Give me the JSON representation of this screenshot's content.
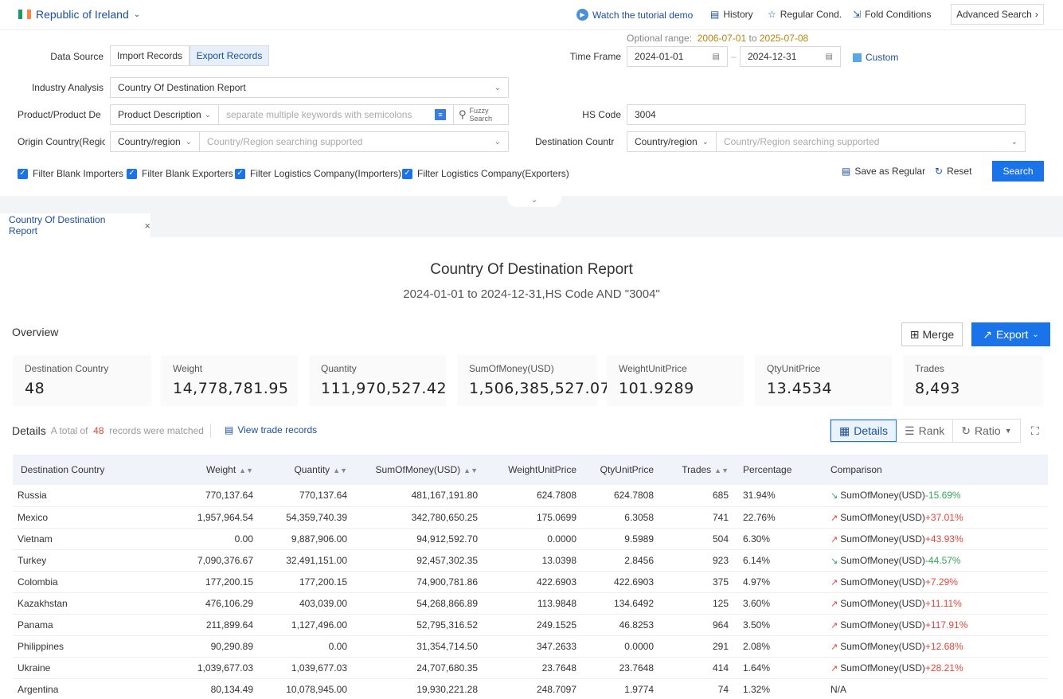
{
  "topbar": {
    "country": "Republic of Ireland",
    "tutorial": "Watch the tutorial demo",
    "history": "History",
    "regular_cond": "Regular Cond.",
    "fold_conditions": "Fold Conditions",
    "advanced_search": "Advanced Search"
  },
  "form": {
    "optional_range_label": "Optional range",
    "optional_range_start": "2006-07-01",
    "optional_range_to": "to",
    "optional_range_end": "2025-07-08",
    "data_source_label": "Data Source",
    "import_records": "Import Records",
    "export_records": "Export Records",
    "time_frame_label": "Time Frame",
    "date_from": "2024-01-01",
    "date_to": "2024-12-31",
    "custom": "Custom",
    "industry_label": "Industry Analysis",
    "industry_value": "Country Of Destination Report",
    "product_label": "Product/Product De",
    "product_type": "Product Description",
    "product_placeholder": "separate multiple keywords with semicolons",
    "fuzzy_search": "Fuzzy Search",
    "hs_code_label": "HS Code",
    "hs_code_value": "3004",
    "origin_label": "Origin Country(Regio",
    "origin_type": "Country/region",
    "origin_placeholder": "Country/Region searching supported",
    "dest_label": "Destination Countr",
    "dest_type": "Country/region",
    "dest_placeholder": "Country/Region searching supported",
    "filters": [
      "Filter Blank Importers",
      "Filter Blank Exporters",
      "Filter Logistics Company(Importers)",
      "Filter Logistics Company(Exporters)"
    ],
    "save_regular": "Save as Regular",
    "reset": "Reset",
    "search": "Search"
  },
  "report_tab": "Country Of Destination Report",
  "report": {
    "title": "Country Of Destination Report",
    "subtitle": "2024-01-01 to 2024-12-31,HS Code AND \"3004\""
  },
  "overview": {
    "title": "Overview",
    "merge": "Merge",
    "export": "Export",
    "cards": [
      {
        "label": "Destination Country",
        "value": "48"
      },
      {
        "label": "Weight",
        "value": "14,778,781.95"
      },
      {
        "label": "Quantity",
        "value": "111,970,527.42"
      },
      {
        "label": "SumOfMoney(USD)",
        "value": "1,506,385,527.07"
      },
      {
        "label": "WeightUnitPrice",
        "value": "101.9289"
      },
      {
        "label": "QtyUnitPrice",
        "value": "13.4534"
      },
      {
        "label": "Trades",
        "value": "8,493"
      }
    ]
  },
  "details": {
    "title": "Details",
    "total_prefix": "A total of",
    "total_count": "48",
    "total_suffix": "records were matched",
    "view_trade": "View trade records",
    "toggle": [
      "Details",
      "Rank",
      "Ratio"
    ]
  },
  "table": {
    "headers": [
      "Destination Country",
      "Weight",
      "Quantity",
      "SumOfMoney(USD)",
      "WeightUnitPrice",
      "QtyUnitPrice",
      "Trades",
      "Percentage",
      "Comparison"
    ],
    "rows": [
      {
        "country": "Russia",
        "weight": "770,137.64",
        "quantity": "770,137.64",
        "money": "481,167,191.80",
        "wup": "624.7808",
        "qup": "624.7808",
        "trades": "685",
        "pct": "31.94%",
        "cmp_label": "SumOfMoney(USD)",
        "cmp": "-15.69%"
      },
      {
        "country": "Mexico",
        "weight": "1,957,964.54",
        "quantity": "54,359,740.39",
        "money": "342,780,650.25",
        "wup": "175.0699",
        "qup": "6.3058",
        "trades": "741",
        "pct": "22.76%",
        "cmp_label": "SumOfMoney(USD)",
        "cmp": "+37.01%"
      },
      {
        "country": "Vietnam",
        "weight": "0.00",
        "quantity": "9,887,906.00",
        "money": "94,912,592.70",
        "wup": "0.0000",
        "qup": "9.5989",
        "trades": "504",
        "pct": "6.30%",
        "cmp_label": "SumOfMoney(USD)",
        "cmp": "+43.93%"
      },
      {
        "country": "Turkey",
        "weight": "7,090,376.67",
        "quantity": "32,491,151.00",
        "money": "92,457,302.35",
        "wup": "13.0398",
        "qup": "2.8456",
        "trades": "923",
        "pct": "6.14%",
        "cmp_label": "SumOfMoney(USD)",
        "cmp": "-44.57%"
      },
      {
        "country": "Colombia",
        "weight": "177,200.15",
        "quantity": "177,200.15",
        "money": "74,900,781.86",
        "wup": "422.6903",
        "qup": "422.6903",
        "trades": "375",
        "pct": "4.97%",
        "cmp_label": "SumOfMoney(USD)",
        "cmp": "+7.29%"
      },
      {
        "country": "Kazakhstan",
        "weight": "476,106.29",
        "quantity": "403,039.00",
        "money": "54,268,866.89",
        "wup": "113.9848",
        "qup": "134.6492",
        "trades": "125",
        "pct": "3.60%",
        "cmp_label": "SumOfMoney(USD)",
        "cmp": "+11.11%"
      },
      {
        "country": "Panama",
        "weight": "211,899.64",
        "quantity": "1,127,496.00",
        "money": "52,795,316.52",
        "wup": "249.1525",
        "qup": "46.8253",
        "trades": "964",
        "pct": "3.50%",
        "cmp_label": "SumOfMoney(USD)",
        "cmp": "+117.91%"
      },
      {
        "country": "Philippines",
        "weight": "90,290.89",
        "quantity": "0.00",
        "money": "31,354,714.50",
        "wup": "347.2633",
        "qup": "0.0000",
        "trades": "291",
        "pct": "2.08%",
        "cmp_label": "SumOfMoney(USD)",
        "cmp": "+12.68%"
      },
      {
        "country": "Ukraine",
        "weight": "1,039,677.03",
        "quantity": "1,039,677.03",
        "money": "24,707,680.35",
        "wup": "23.7648",
        "qup": "23.7648",
        "trades": "414",
        "pct": "1.64%",
        "cmp_label": "SumOfMoney(USD)",
        "cmp": "+28.21%"
      },
      {
        "country": "Argentina",
        "weight": "80,134.49",
        "quantity": "10,078,945.00",
        "money": "19,930,221.28",
        "wup": "248.7097",
        "qup": "1.9774",
        "trades": "74",
        "pct": "1.32%",
        "cmp_label": "",
        "cmp": "N/A"
      }
    ]
  },
  "colors": {
    "accent": "#1a73e8",
    "up": "#e8453c",
    "down": "#34a853"
  }
}
